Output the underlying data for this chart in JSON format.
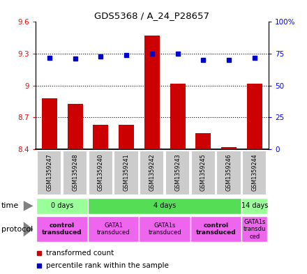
{
  "title": "GDS5368 / A_24_P28657",
  "samples": [
    "GSM1359247",
    "GSM1359248",
    "GSM1359240",
    "GSM1359241",
    "GSM1359242",
    "GSM1359243",
    "GSM1359245",
    "GSM1359246",
    "GSM1359244"
  ],
  "transformed_count": [
    8.88,
    8.83,
    8.63,
    8.63,
    9.47,
    9.02,
    8.55,
    8.42,
    9.02
  ],
  "percentile_rank": [
    72,
    71,
    73,
    74,
    75,
    75,
    70,
    70,
    72
  ],
  "ylim_left": [
    8.4,
    9.6
  ],
  "ylim_right": [
    0,
    100
  ],
  "yticks_left": [
    8.4,
    8.7,
    9.0,
    9.3,
    9.6
  ],
  "yticks_right": [
    0,
    25,
    50,
    75,
    100
  ],
  "ytick_labels_left": [
    "8.4",
    "8.7",
    "9",
    "9.3",
    "9.6"
  ],
  "ytick_labels_right": [
    "0",
    "25",
    "50",
    "75",
    "100%"
  ],
  "bar_color": "#cc0000",
  "dot_color": "#0000cc",
  "time_groups": [
    {
      "label": "0 days",
      "start": 0,
      "end": 2,
      "color": "#99ff99"
    },
    {
      "label": "4 days",
      "start": 2,
      "end": 8,
      "color": "#55dd55"
    },
    {
      "label": "14 days",
      "start": 8,
      "end": 9,
      "color": "#99ff99"
    }
  ],
  "protocol_groups": [
    {
      "label": "control\ntransduced",
      "start": 0,
      "end": 2,
      "color": "#ee66ee",
      "bold": true
    },
    {
      "label": "GATA1\ntransduced",
      "start": 2,
      "end": 4,
      "color": "#ee66ee",
      "bold": false
    },
    {
      "label": "GATA1s\ntransduced",
      "start": 4,
      "end": 6,
      "color": "#ee66ee",
      "bold": false
    },
    {
      "label": "control\ntransduced",
      "start": 6,
      "end": 8,
      "color": "#ee66ee",
      "bold": true
    },
    {
      "label": "GATA1s\ntransdu\nced",
      "start": 8,
      "end": 9,
      "color": "#ee66ee",
      "bold": false
    }
  ],
  "legend_items": [
    {
      "color": "#cc0000",
      "label": "transformed count"
    },
    {
      "color": "#0000cc",
      "label": "percentile rank within the sample"
    }
  ],
  "sample_bg_color": "#cccccc"
}
